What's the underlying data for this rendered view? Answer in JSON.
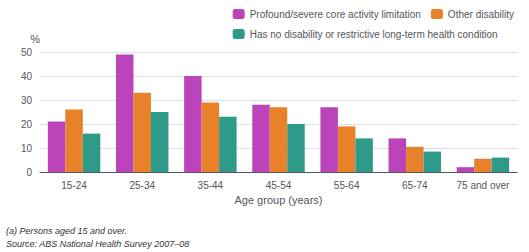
{
  "chart_data": {
    "type": "bar",
    "categories": [
      "15-24",
      "25-34",
      "35-44",
      "45-54",
      "55-64",
      "65-74",
      "75 and over"
    ],
    "series": [
      {
        "name": "Profound/severe core activity limitation",
        "color": "#BB44BB",
        "values": [
          21,
          49,
          40,
          28,
          27,
          14,
          2
        ]
      },
      {
        "name": "Other disability",
        "color": "#E8812A",
        "values": [
          26,
          33,
          29,
          27,
          19,
          10.5,
          5.5
        ]
      },
      {
        "name": "Has no disability or restrictive long-term health condition",
        "color": "#2E9B8A",
        "values": [
          16,
          25,
          23,
          20,
          14,
          8.5,
          6
        ]
      }
    ],
    "xlabel": "Age group (years)",
    "ylabel": "%",
    "ylim": [
      0,
      50
    ],
    "yticks": [
      0,
      10,
      20,
      30,
      40,
      50
    ],
    "grid": true,
    "legend": "upper right",
    "annotations": [
      "(a) Persons aged 15 and over.",
      "Source: ABS National Health Survey 2007–08"
    ]
  }
}
